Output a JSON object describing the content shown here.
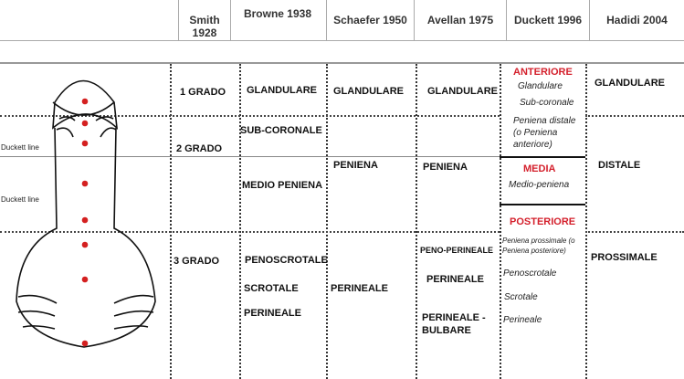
{
  "header": {
    "columns": [
      "Smith 1928",
      "Browne 1938",
      "Schaefer 1950",
      "Avellan 1975",
      "Duckett 1996",
      "Hadidi 2004"
    ]
  },
  "labels": {
    "duckett_line": "Duckett line"
  },
  "smith": [
    "1 GRADO",
    "2 GRADO",
    "3 GRADO"
  ],
  "browne": [
    "GLANDULARE",
    "SUB-CORONALE",
    "MEDIO PENIENA",
    "PENOSCROTALE",
    "SCROTALE",
    "PERINEALE"
  ],
  "schaefer": [
    "GLANDULARE",
    "PENIENA",
    "PERINEALE"
  ],
  "avellan": [
    "GLANDULARE",
    "PENIENA",
    "PENO-PERINEALE",
    "PERINEALE",
    "PERINEALE - BULBARE"
  ],
  "duckett": {
    "anteriore": "ANTERIORE",
    "glandulare": "Glandulare",
    "subcoronale": "Sub-coronale",
    "distale": "Peniena distale (o Peniena anteriore)",
    "media": "MEDIA",
    "medio": "Medio-peniena",
    "posteriore": "POSTERIORE",
    "prossimale": "Peniena prossimale (o Peniena posteriore)",
    "penoscrotale": "Penoscrotale",
    "scrotale": "Scrotale",
    "perineale": "Perineale"
  },
  "hadidi": [
    "GLANDULARE",
    "DISTALE",
    "PROSSIMALE"
  ],
  "colors": {
    "accent": "#d4202c",
    "dot": "#d42020"
  }
}
